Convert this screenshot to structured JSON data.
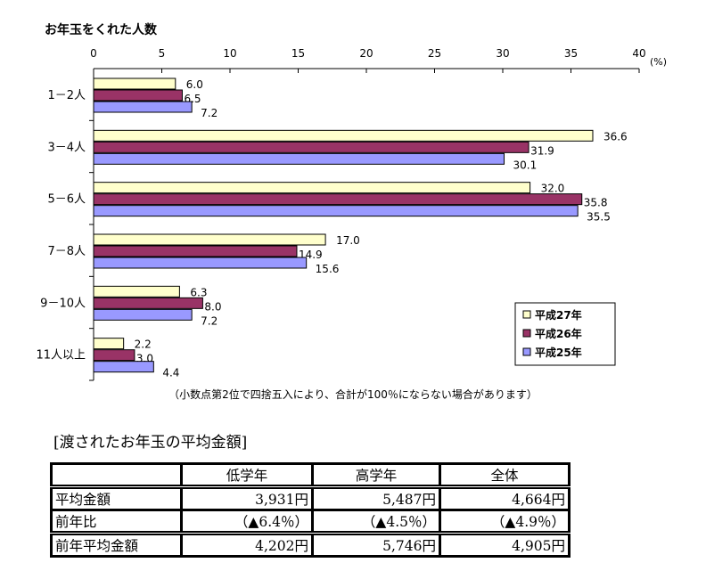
{
  "chart_data": {
    "type": "bar",
    "orientation": "horizontal",
    "title": "お年玉をくれた人数",
    "unit_label": "(%)",
    "xlim": [
      0,
      40
    ],
    "x_ticks": [
      "0",
      "5",
      "10",
      "15",
      "20",
      "25",
      "30",
      "35",
      "40"
    ],
    "grid": false,
    "legend_position": "bottom-right",
    "categories": [
      "1－2人",
      "3－4人",
      "5－6人",
      "7－8人",
      "9－10人",
      "11人以上"
    ],
    "series": [
      {
        "name": "平成27年",
        "color": "#FFFFCC",
        "values": [
          6.0,
          36.6,
          32.0,
          17.0,
          6.3,
          2.2
        ]
      },
      {
        "name": "平成26年",
        "color": "#993366",
        "values": [
          6.5,
          31.9,
          35.8,
          14.9,
          8.0,
          3.0
        ]
      },
      {
        "name": "平成25年",
        "color": "#9999FF",
        "values": [
          7.2,
          30.1,
          35.5,
          15.6,
          7.2,
          4.4
        ]
      }
    ],
    "note": "（小数点第2位で四捨五入により、合計が100％にならない場合があります）"
  },
  "table": {
    "title": "[渡されたお年玉の平均金額]",
    "headers": [
      "",
      "低学年",
      "高学年",
      "全体"
    ],
    "rows": [
      [
        "平均金額",
        "3,931円",
        "5,487円",
        "4,664円"
      ],
      [
        "前年比",
        "（▲6.4％）",
        "（▲4.5％）",
        "（▲4.9％）"
      ],
      [
        "前年平均金額",
        "4,202円",
        "5,746円",
        "4,905円"
      ]
    ]
  }
}
